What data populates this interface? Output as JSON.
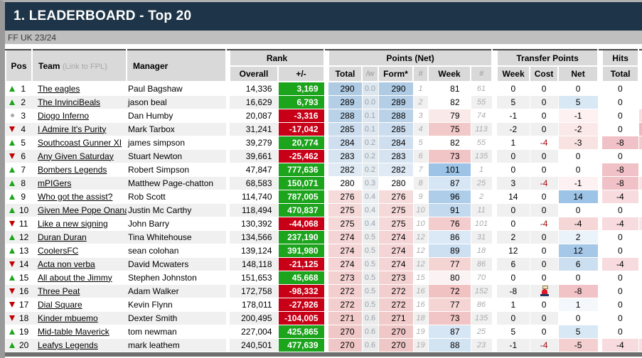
{
  "title": "1. LEADERBOARD - Top 20",
  "league": "FF UK 23/24",
  "colors": {
    "header_bg": "#1E3448",
    "subbar_bg": "#BFBFBF",
    "thead_bg": "#D9D9D9",
    "positive_bg": "#1DA41D",
    "negative_bg": "#C80017",
    "up_arrow": "#1CA51C",
    "down_arrow": "#C00000",
    "cost_negative_text": "#A50D12"
  },
  "header": {
    "pos": "Pos",
    "team": "Team",
    "team_note": "(Link to FPL)",
    "manager": "Manager",
    "rank_group": "Rank",
    "rank_overall": "Overall",
    "rank_change": "+/-",
    "points_group": "Points (Net)",
    "pts_total": "Total",
    "pts_w": "/w",
    "pts_form": "Form*",
    "pts_hash1": "#",
    "pts_week": "Week",
    "pts_hash2": "#",
    "transfer_group": "Transfer Points",
    "tr_week": "Week",
    "tr_cost": "Cost",
    "tr_net": "Net",
    "hits_group": "Hits",
    "hits_total": "Total"
  },
  "rows": [
    {
      "pos": "1",
      "trend": "up",
      "team": "The eagles",
      "manager": "Paul Bagshaw",
      "overall": "14,336",
      "change": "3,169",
      "total": "290",
      "w": "0.0",
      "form": "290",
      "form_rank": "1",
      "week": "81",
      "week_rank": "61",
      "t_week": "0",
      "t_cost": "0",
      "t_cost_icon": false,
      "t_net": "0",
      "hits": "0",
      "total_bg": "#AFCBE4",
      "w_bg": "#DCE6EF",
      "week_bg": "",
      "net_bg": "",
      "hits_bg": "",
      "sliver_bg": ""
    },
    {
      "pos": "2",
      "trend": "up",
      "team": "The InvinciBeals",
      "manager": "jason beal",
      "overall": "16,629",
      "change": "6,793",
      "total": "289",
      "w": "0.0",
      "form": "289",
      "form_rank": "2",
      "week": "82",
      "week_rank": "55",
      "t_week": "5",
      "t_cost": "0",
      "t_cost_icon": false,
      "t_net": "5",
      "hits": "0",
      "total_bg": "#B4CEE6",
      "w_bg": "#DCE6EF",
      "week_bg": "",
      "net_bg": "#D9E8F5",
      "hits_bg": "",
      "sliver_bg": ""
    },
    {
      "pos": "3",
      "trend": "same",
      "team": "Diogo Inferno",
      "manager": "Dan Humby",
      "overall": "20,087",
      "change": "-3,316",
      "total": "288",
      "w": "0.1",
      "form": "288",
      "form_rank": "3",
      "week": "79",
      "week_rank": "74",
      "t_week": "-1",
      "t_cost": "0",
      "t_cost_icon": false,
      "t_net": "-1",
      "hits": "0",
      "total_bg": "#BAD2E8",
      "w_bg": "#DEE7EF",
      "week_bg": "#F9E9E9",
      "net_bg": "#FDF1F1",
      "hits_bg": "",
      "sliver_bg": "#F8DEE1"
    },
    {
      "pos": "4",
      "trend": "down",
      "team": "I Admire It's Purity",
      "manager": "Mark Tarbox",
      "overall": "31,241",
      "change": "-17,042",
      "total": "285",
      "w": "0.1",
      "form": "285",
      "form_rank": "4",
      "week": "75",
      "week_rank": "113",
      "t_week": "-2",
      "t_cost": "0",
      "t_cost_icon": false,
      "t_net": "-2",
      "hits": "0",
      "total_bg": "#CBDCEE",
      "w_bg": "#DEE7EF",
      "week_bg": "#F2C9C9",
      "net_bg": "#FBE9E9",
      "hits_bg": "",
      "sliver_bg": "#EFB9BF"
    },
    {
      "pos": "5",
      "trend": "up",
      "team": "Southcoast Gunner XI",
      "manager": "james simpson",
      "overall": "39,279",
      "change": "20,774",
      "total": "284",
      "w": "0.2",
      "form": "284",
      "form_rank": "5",
      "week": "82",
      "week_rank": "55",
      "t_week": "1",
      "t_cost": "-4",
      "t_cost_icon": false,
      "t_net": "-3",
      "hits": "-8",
      "total_bg": "#D0DFF0",
      "w_bg": "#E2EAF0",
      "week_bg": "",
      "net_bg": "#F9E2E2",
      "hits_bg": "#F0C1C7",
      "sliver_bg": "#F3CBCF"
    },
    {
      "pos": "6",
      "trend": "down",
      "team": "Any Given Saturday",
      "manager": "Stuart Newton",
      "overall": "39,661",
      "change": "-25,462",
      "total": "283",
      "w": "0.2",
      "form": "283",
      "form_rank": "6",
      "week": "73",
      "week_rank": "135",
      "t_week": "0",
      "t_cost": "0",
      "t_cost_icon": false,
      "t_net": "0",
      "hits": "0",
      "total_bg": "#D6E3F1",
      "w_bg": "#E2EAF0",
      "week_bg": "#F1C5C5",
      "net_bg": "",
      "hits_bg": "",
      "sliver_bg": ""
    },
    {
      "pos": "7",
      "trend": "up",
      "team": "Bombers Legends",
      "manager": "Robert Simpson",
      "overall": "47,847",
      "change": "777,636",
      "total": "282",
      "w": "0.2",
      "form": "282",
      "form_rank": "7",
      "week": "101",
      "week_rank": "1",
      "t_week": "0",
      "t_cost": "0",
      "t_cost_icon": false,
      "t_net": "0",
      "hits": "-8",
      "total_bg": "#E0EAF5",
      "w_bg": "#E4EBF1",
      "week_bg": "#9DC3E6",
      "net_bg": "",
      "hits_bg": "#F0C1C7",
      "sliver_bg": ""
    },
    {
      "pos": "8",
      "trend": "up",
      "team": "mPIGers",
      "manager": "Matthew Page-chatton",
      "overall": "68,583",
      "change": "150,071",
      "total": "280",
      "w": "0.3",
      "form": "280",
      "form_rank": "8",
      "week": "87",
      "week_rank": "25",
      "t_week": "3",
      "t_cost": "-4",
      "t_cost_icon": false,
      "t_net": "-1",
      "hits": "-8",
      "total_bg": "",
      "w_bg": "#E8EDF1",
      "week_bg": "#D7E6F4",
      "net_bg": "#FDF1F1",
      "hits_bg": "#F0C1C7",
      "sliver_bg": "#F9E3E5"
    },
    {
      "pos": "9",
      "trend": "up",
      "team": "Who got the assist?",
      "manager": "Rob Scott",
      "overall": "114,740",
      "change": "787,005",
      "total": "276",
      "w": "0.4",
      "form": "276",
      "form_rank": "9",
      "week": "96",
      "week_rank": "2",
      "t_week": "14",
      "t_cost": "0",
      "t_cost_icon": false,
      "t_net": "14",
      "hits": "-4",
      "total_bg": "#F6DBDB",
      "w_bg": "#ECEFF2",
      "week_bg": "#AECDE9",
      "net_bg": "#9DC3E6",
      "hits_bg": "#F7DBDF",
      "sliver_bg": ""
    },
    {
      "pos": "10",
      "trend": "up",
      "team": "Given Mee Pope Onana",
      "manager": "Justin Mc Carthy",
      "overall": "118,494",
      "change": "470,837",
      "total": "275",
      "w": "0.4",
      "form": "275",
      "form_rank": "10",
      "week": "91",
      "week_rank": "11",
      "t_week": "0",
      "t_cost": "0",
      "t_cost_icon": false,
      "t_net": "0",
      "hits": "0",
      "total_bg": "#F5D8D8",
      "w_bg": "#ECEFF2",
      "week_bg": "#C3D9EE",
      "net_bg": "",
      "hits_bg": "",
      "sliver_bg": ""
    },
    {
      "pos": "11",
      "trend": "down",
      "team": "Like a new signing",
      "manager": "John Barry",
      "overall": "130,392",
      "change": "-44,068",
      "total": "275",
      "w": "0.4",
      "form": "275",
      "form_rank": "10",
      "week": "76",
      "week_rank": "101",
      "t_week": "0",
      "t_cost": "-4",
      "t_cost_icon": false,
      "t_net": "-4",
      "hits": "-4",
      "total_bg": "#F5D8D8",
      "w_bg": "#ECEFF2",
      "week_bg": "#F3CDCD",
      "net_bg": "#F6D7D7",
      "hits_bg": "#F7DBDF",
      "sliver_bg": "#F9E6E8"
    },
    {
      "pos": "12",
      "trend": "up",
      "team": "Duran Duran",
      "manager": "Tina Whitehouse",
      "overall": "134,566",
      "change": "237,190",
      "total": "274",
      "w": "0.5",
      "form": "274",
      "form_rank": "12",
      "week": "86",
      "week_rank": "31",
      "t_week": "2",
      "t_cost": "0",
      "t_cost_icon": false,
      "t_net": "2",
      "hits": "0",
      "total_bg": "#F4D4D4",
      "w_bg": "#EDEDEE",
      "week_bg": "#DBE8F5",
      "net_bg": "#EAF2FA",
      "hits_bg": "",
      "sliver_bg": ""
    },
    {
      "pos": "13",
      "trend": "up",
      "team": "CoolersFC",
      "manager": "sean colohan",
      "overall": "139,124",
      "change": "391,980",
      "total": "274",
      "w": "0.5",
      "form": "274",
      "form_rank": "12",
      "week": "89",
      "week_rank": "18",
      "t_week": "12",
      "t_cost": "0",
      "t_cost_icon": false,
      "t_net": "12",
      "hits": "0",
      "total_bg": "#F4D4D4",
      "w_bg": "#EDEDEE",
      "week_bg": "#CDE0F1",
      "net_bg": "#A5C8E8",
      "hits_bg": "",
      "sliver_bg": ""
    },
    {
      "pos": "14",
      "trend": "down",
      "team": "Acta non verba",
      "manager": "David Mcwaters",
      "overall": "148,118",
      "change": "-21,125",
      "total": "274",
      "w": "0.5",
      "form": "274",
      "form_rank": "12",
      "week": "77",
      "week_rank": "86",
      "t_week": "6",
      "t_cost": "0",
      "t_cost_icon": false,
      "t_net": "6",
      "hits": "-4",
      "total_bg": "#F4D4D4",
      "w_bg": "#EDEDEE",
      "week_bg": "#F5D4D4",
      "net_bg": "#CBDFF1",
      "hits_bg": "#F7DBDF",
      "sliver_bg": ""
    },
    {
      "pos": "15",
      "trend": "up",
      "team": "All about the Jimmy",
      "manager": "Stephen Johnston",
      "overall": "151,653",
      "change": "45,668",
      "total": "273",
      "w": "0.5",
      "form": "273",
      "form_rank": "15",
      "week": "80",
      "week_rank": "70",
      "t_week": "0",
      "t_cost": "0",
      "t_cost_icon": false,
      "t_net": "0",
      "hits": "0",
      "total_bg": "#F3D1D1",
      "w_bg": "#EDEDEE",
      "week_bg": "#FBF3F3",
      "net_bg": "",
      "hits_bg": "",
      "sliver_bg": ""
    },
    {
      "pos": "16",
      "trend": "down",
      "team": "Three Peat",
      "manager": "Adam Walker",
      "overall": "172,758",
      "change": "-98,332",
      "total": "272",
      "w": "0.5",
      "form": "272",
      "form_rank": "16",
      "week": "72",
      "week_rank": "152",
      "t_week": "-8",
      "t_cost": "",
      "t_cost_icon": true,
      "t_net": "-8",
      "hits": "0",
      "total_bg": "#F2CECE",
      "w_bg": "#ECECEC",
      "week_bg": "#F0C2C2",
      "net_bg": "#F1C3C6",
      "hits_bg": "",
      "sliver_bg": ""
    },
    {
      "pos": "17",
      "trend": "down",
      "team": "Dial Square",
      "manager": "Kevin Flynn",
      "overall": "178,011",
      "change": "-27,926",
      "total": "272",
      "w": "0.5",
      "form": "272",
      "form_rank": "16",
      "week": "77",
      "week_rank": "86",
      "t_week": "1",
      "t_cost": "0",
      "t_cost_icon": false,
      "t_net": "1",
      "hits": "0",
      "total_bg": "#F2CECE",
      "w_bg": "#ECECEC",
      "week_bg": "#F5D4D4",
      "net_bg": "#F4F8FC",
      "hits_bg": "",
      "sliver_bg": ""
    },
    {
      "pos": "18",
      "trend": "down",
      "team": "Kinder mbuemo",
      "manager": "Dexter Smith",
      "overall": "200,495",
      "change": "-104,005",
      "total": "271",
      "w": "0.6",
      "form": "271",
      "form_rank": "18",
      "week": "73",
      "week_rank": "135",
      "t_week": "0",
      "t_cost": "0",
      "t_cost_icon": false,
      "t_net": "0",
      "hits": "0",
      "total_bg": "#F1CACA",
      "w_bg": "#EBEBEB",
      "week_bg": "#F1C5C5",
      "net_bg": "",
      "hits_bg": "",
      "sliver_bg": ""
    },
    {
      "pos": "19",
      "trend": "up",
      "team": "Mid-table Maverick",
      "manager": "tom newman",
      "overall": "227,004",
      "change": "425,865",
      "total": "270",
      "w": "0.6",
      "form": "270",
      "form_rank": "19",
      "week": "87",
      "week_rank": "25",
      "t_week": "5",
      "t_cost": "0",
      "t_cost_icon": false,
      "t_net": "5",
      "hits": "0",
      "total_bg": "#F0C7C7",
      "w_bg": "#EBEBEB",
      "week_bg": "#D7E6F4",
      "net_bg": "#D9E8F5",
      "hits_bg": "",
      "sliver_bg": ""
    },
    {
      "pos": "20",
      "trend": "up",
      "team": "Leafys Legends",
      "manager": "mark leathem",
      "overall": "240,501",
      "change": "477,639",
      "total": "270",
      "w": "0.6",
      "form": "270",
      "form_rank": "19",
      "week": "88",
      "week_rank": "23",
      "t_week": "-1",
      "t_cost": "-4",
      "t_cost_icon": false,
      "t_net": "-5",
      "hits": "-4",
      "total_bg": "#F0C7C7",
      "w_bg": "#EBEBEB",
      "week_bg": "#D2E3F2",
      "net_bg": "#F4CFCF",
      "hits_bg": "#F7DBDF",
      "sliver_bg": "#F7DFE2"
    }
  ]
}
